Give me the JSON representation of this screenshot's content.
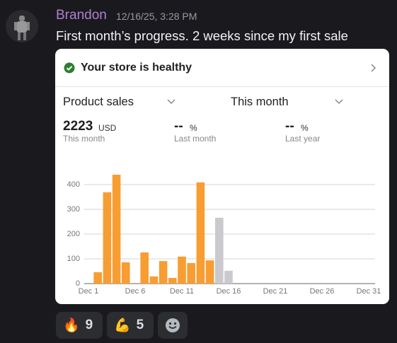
{
  "message": {
    "author": "Brandon",
    "timestamp": "12/16/25, 3:28 PM",
    "text": "First month’s progress. 2 weeks since my first sale"
  },
  "card": {
    "status": "Your store is healthy",
    "metric_select": "Product sales",
    "period_select": "This month",
    "stats": [
      {
        "value": 2223,
        "unit": "USD",
        "label": "This month"
      },
      {
        "value": "--",
        "unit": "%",
        "label": "Last month"
      },
      {
        "value": "--",
        "unit": "%",
        "label": "Last year"
      }
    ]
  },
  "chart_data": {
    "type": "bar",
    "categories": [
      "Dec 1",
      null,
      null,
      null,
      null,
      "Dec 6",
      null,
      null,
      null,
      null,
      "Dec 11",
      null,
      null,
      null,
      null,
      "Dec 16",
      null,
      null,
      null,
      null,
      "Dec 21",
      null,
      null,
      null,
      null,
      "Dec 26",
      null,
      null,
      null,
      null,
      "Dec 31"
    ],
    "series": [
      {
        "color": "#f89d32",
        "values": [
          null,
          46,
          369,
          440,
          86,
          null,
          126,
          29,
          91,
          23,
          109,
          83,
          409,
          94,
          null,
          null,
          null,
          null,
          null,
          null,
          null,
          null,
          null,
          null,
          null,
          null,
          null,
          null,
          null,
          null,
          null
        ]
      },
      {
        "color": "#c9c9ce",
        "values": [
          null,
          null,
          null,
          null,
          null,
          null,
          null,
          null,
          null,
          null,
          null,
          null,
          null,
          null,
          266,
          52,
          null,
          null,
          null,
          null,
          null,
          null,
          null,
          null,
          null,
          null,
          null,
          null,
          null,
          null,
          null
        ]
      }
    ],
    "ylim": [
      0,
      480
    ],
    "yticks": [
      0,
      100,
      200,
      300,
      400
    ],
    "grid": true
  },
  "reactions": [
    {
      "emoji": "🔥",
      "count": 9
    },
    {
      "emoji": "💪",
      "count": 5
    }
  ]
}
